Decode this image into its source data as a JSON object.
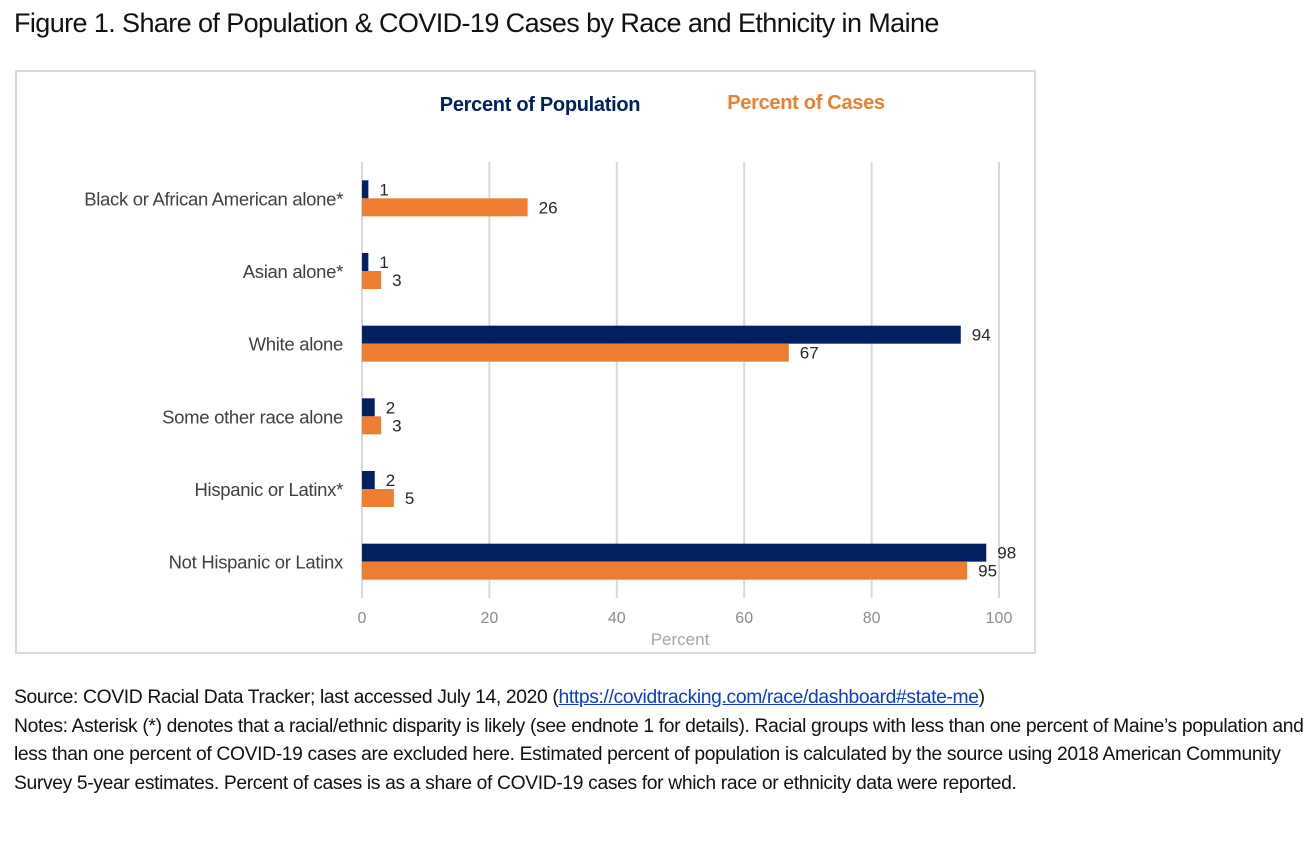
{
  "figure": {
    "title": "Figure 1. Share of Population & COVID-19 Cases by Race and Ethnicity in Maine"
  },
  "notes": {
    "source_prefix": "Source: COVID Racial Data Tracker; last accessed July 14, 2020 (",
    "source_link": "https://covidtracking.com/race/dashboard#state-me",
    "source_suffix": ")",
    "notes_text": "Notes: Asterisk (*) denotes that a racial/ethnic disparity is likely (see endnote 1 for details). Racial groups with less than one percent of Maine’s population and less than one percent of COVID-19 cases are excluded here. Estimated percent of population is calculated by the source using 2018 American Community Survey 5-year estimates. Percent of cases is as a share of COVID-19 cases for which race or ethnicity data were reported."
  },
  "chart_data": {
    "type": "bar",
    "orientation": "horizontal",
    "title": "",
    "xlabel": "Percent",
    "ylabel": "",
    "xlim": [
      0,
      100
    ],
    "xticks": [
      0,
      20,
      40,
      60,
      80,
      100
    ],
    "grid": true,
    "legend_position": "top",
    "categories": [
      "Black or African American alone*",
      "Asian alone*",
      "White alone",
      "Some other race alone",
      "Hispanic or Latinx*",
      "Not Hispanic or Latinx"
    ],
    "series": [
      {
        "name": "Percent of Population",
        "color": "#002060",
        "values": [
          1,
          1,
          94,
          2,
          2,
          98
        ]
      },
      {
        "name": "Percent of Cases",
        "color": "#ed7d31",
        "values": [
          26,
          3,
          67,
          3,
          5,
          95
        ]
      }
    ],
    "colors": {
      "gridline": "#d9d9d9",
      "tick_label": "#8c8c8c",
      "category_label": "#404040",
      "data_label": "#262626"
    }
  }
}
